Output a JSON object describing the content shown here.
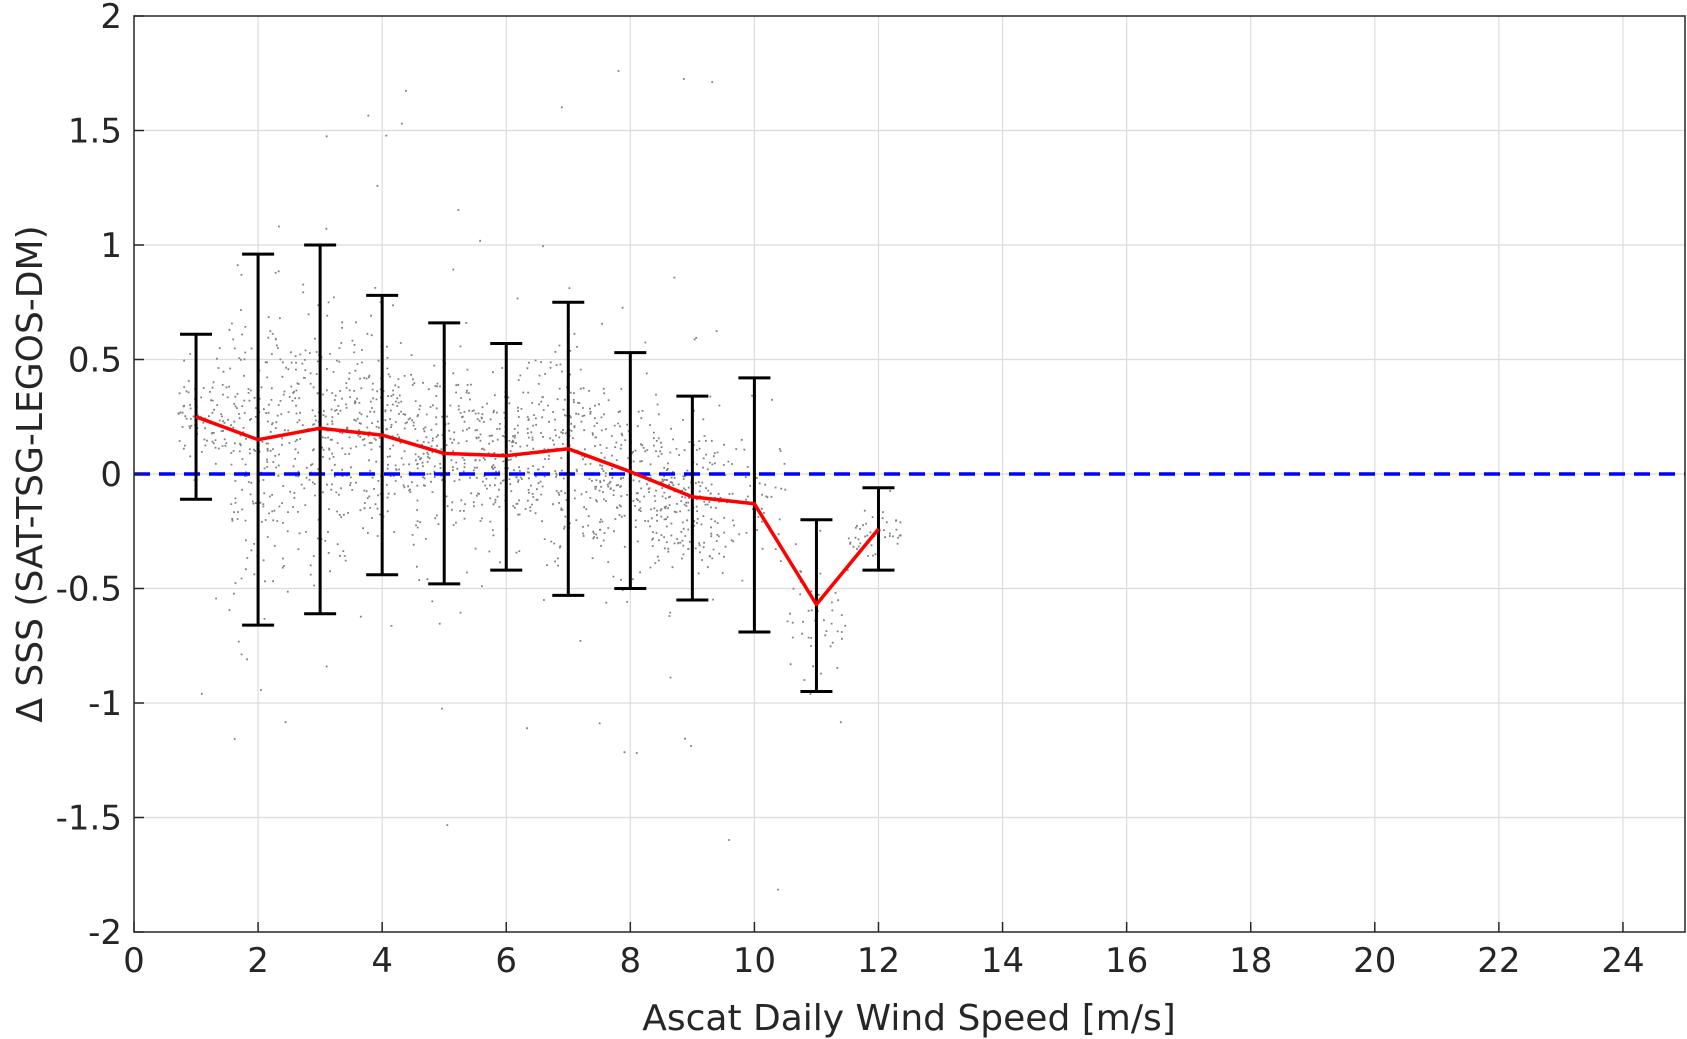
{
  "chart_data": {
    "type": "scatter",
    "xlabel": "Ascat Daily Wind Speed [m/s]",
    "ylabel": "Δ SSS (SAT-TSG-LEGOS-DM)",
    "xlim": [
      0,
      25
    ],
    "ylim": [
      -2,
      2
    ],
    "xticks": [
      0,
      2,
      4,
      6,
      8,
      10,
      12,
      14,
      16,
      18,
      20,
      22,
      24
    ],
    "yticks": [
      -2,
      -1.5,
      -1,
      -0.5,
      0,
      0.5,
      1,
      1.5,
      2
    ],
    "grid": true,
    "scatter": {
      "color": "#808080",
      "x_range": [
        0.7,
        12.4
      ],
      "description_centers": [
        [
          1,
          0.25
        ],
        [
          2,
          0.15
        ],
        [
          3,
          0.2
        ],
        [
          4,
          0.17
        ],
        [
          5,
          0.09
        ],
        [
          6,
          0.08
        ],
        [
          7,
          0.11
        ],
        [
          8,
          0.01
        ],
        [
          9,
          -0.1
        ],
        [
          10,
          -0.13
        ],
        [
          11,
          -0.57
        ],
        [
          12,
          -0.24
        ]
      ]
    },
    "mean_line": {
      "color": "#ff0000",
      "x": [
        1,
        2,
        3,
        4,
        5,
        6,
        7,
        8,
        9,
        10,
        11,
        12
      ],
      "y": [
        0.25,
        0.15,
        0.2,
        0.17,
        0.09,
        0.08,
        0.11,
        0.01,
        -0.1,
        -0.13,
        -0.57,
        -0.24
      ]
    },
    "error_bars": {
      "color": "#000000",
      "x": [
        1,
        2,
        3,
        4,
        5,
        6,
        7,
        8,
        9,
        10,
        11,
        12
      ],
      "upper": [
        0.61,
        0.96,
        1.0,
        0.78,
        0.66,
        0.57,
        0.75,
        0.53,
        0.34,
        0.42,
        -0.2,
        -0.06
      ],
      "lower": [
        -0.11,
        -0.66,
        -0.61,
        -0.44,
        -0.48,
        -0.42,
        -0.53,
        -0.5,
        -0.55,
        -0.69,
        -0.95,
        -0.42
      ]
    },
    "reference_line": {
      "y": 0,
      "color": "#0000ff",
      "style": "dashed"
    }
  }
}
